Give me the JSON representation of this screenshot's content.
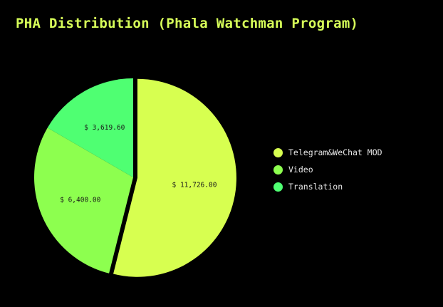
{
  "chart_data": {
    "type": "pie",
    "title": "PHA Distribution (Phala Watchman Program)",
    "categories": [
      "Telegram&WeChat MOD",
      "Video",
      "Translation"
    ],
    "values": [
      11726.0,
      6400.0,
      3619.6
    ],
    "value_labels": [
      "$ 11,726.00",
      "$ 6,400.00",
      "$ 3,619.60"
    ],
    "colors": [
      "#d7ff50",
      "#8dff4f",
      "#4fff72"
    ],
    "exploded_slice": "Telegram&WeChat MOD",
    "legend_position": "right",
    "background": "#000000",
    "title_color": "#d7ff59"
  }
}
